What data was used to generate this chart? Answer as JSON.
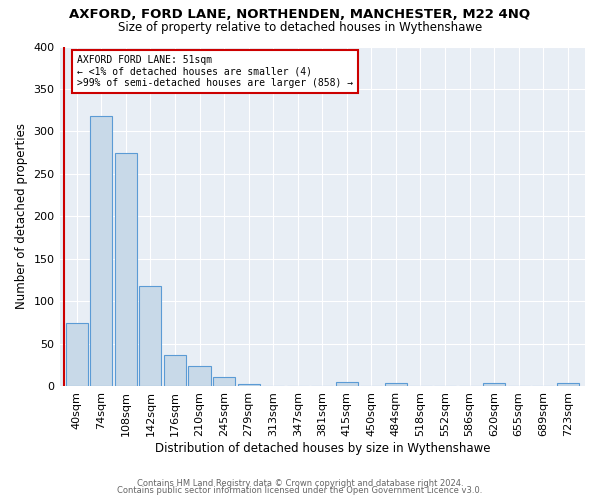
{
  "title": "AXFORD, FORD LANE, NORTHENDEN, MANCHESTER, M22 4NQ",
  "subtitle": "Size of property relative to detached houses in Wythenshawe",
  "xlabel": "Distribution of detached houses by size in Wythenshawe",
  "ylabel": "Number of detached properties",
  "bar_labels": [
    "40sqm",
    "74sqm",
    "108sqm",
    "142sqm",
    "176sqm",
    "210sqm",
    "245sqm",
    "279sqm",
    "313sqm",
    "347sqm",
    "381sqm",
    "415sqm",
    "450sqm",
    "484sqm",
    "518sqm",
    "552sqm",
    "586sqm",
    "620sqm",
    "655sqm",
    "689sqm",
    "723sqm"
  ],
  "bar_values": [
    75,
    318,
    275,
    118,
    37,
    24,
    11,
    3,
    0,
    0,
    0,
    5,
    0,
    4,
    0,
    0,
    0,
    4,
    0,
    0,
    4
  ],
  "bar_color": "#c8d9e8",
  "bar_edge_color": "#5b9bd5",
  "highlight_color": "#cc0000",
  "annotation_title": "AXFORD FORD LANE: 51sqm",
  "annotation_line1": "← <1% of detached houses are smaller (4)",
  "annotation_line2": ">99% of semi-detached houses are larger (858) →",
  "annotation_box_color": "#ffffff",
  "annotation_box_edge": "#cc0000",
  "ylim": [
    0,
    400
  ],
  "yticks": [
    0,
    50,
    100,
    150,
    200,
    250,
    300,
    350,
    400
  ],
  "footer1": "Contains HM Land Registry data © Crown copyright and database right 2024.",
  "footer2": "Contains public sector information licensed under the Open Government Licence v3.0.",
  "bg_color": "#ffffff",
  "plot_bg_color": "#e8eef5"
}
